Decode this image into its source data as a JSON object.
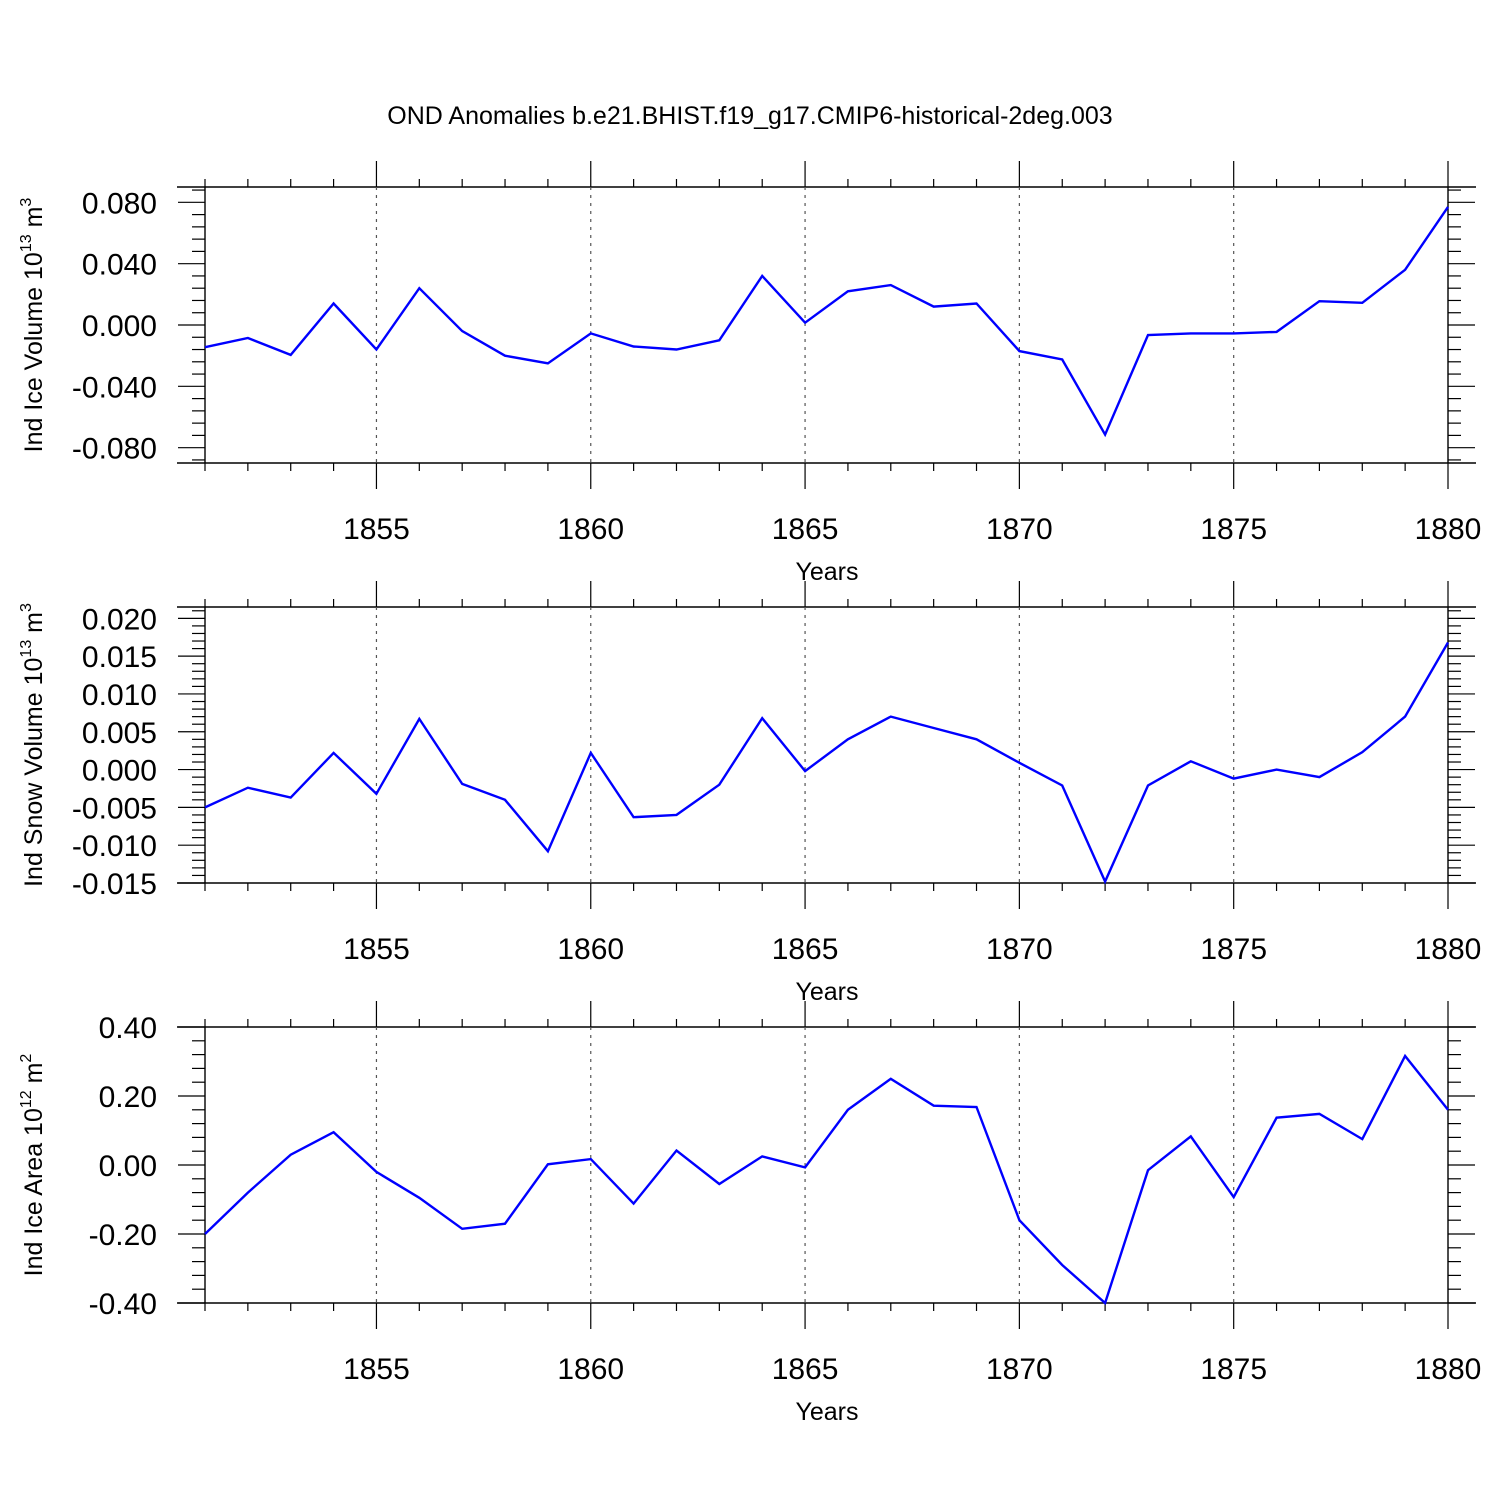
{
  "title": "OND Anomalies b.e21.BHIST.f19_g17.CMIP6-historical-2deg.003",
  "colors": {
    "line": "#0000ff",
    "axis": "#000000",
    "grid": "#555555"
  },
  "chart_data": [
    {
      "type": "line",
      "title": "",
      "xlabel": "Years",
      "ylabel": "Ind Ice Volume 10",
      "ylabel_exp": "13",
      "ylabel_unit": " m",
      "ylabel_unit_exp": "3",
      "xlim": [
        1851,
        1880
      ],
      "ylim": [
        -0.09,
        0.09
      ],
      "yticks": [
        -0.08,
        -0.04,
        0.0,
        0.04,
        0.08
      ],
      "ytick_labels": [
        "-0.080",
        "-0.040",
        "0.000",
        "0.040",
        "0.080"
      ],
      "yminor_step": 0.008,
      "xticks": [
        1855,
        1860,
        1865,
        1870,
        1875,
        1880
      ],
      "xtick_labels": [
        "1855",
        "1860",
        "1865",
        "1870",
        "1875",
        "1880"
      ],
      "grid": "dashed vertical at major x ticks",
      "x": [
        1851,
        1852,
        1853,
        1854,
        1855,
        1856,
        1857,
        1858,
        1859,
        1860,
        1861,
        1862,
        1863,
        1864,
        1865,
        1866,
        1867,
        1868,
        1869,
        1870,
        1871,
        1872,
        1873,
        1874,
        1875,
        1876,
        1877,
        1878,
        1879,
        1880
      ],
      "series": [
        {
          "name": "Ind Ice Volume",
          "values": [
            -0.0145,
            -0.0085,
            -0.0195,
            0.014,
            -0.016,
            0.024,
            -0.004,
            -0.02,
            -0.025,
            -0.0055,
            -0.014,
            -0.016,
            -0.01,
            0.032,
            0.0015,
            0.022,
            0.026,
            0.012,
            0.014,
            -0.017,
            -0.0225,
            -0.0715,
            -0.0065,
            -0.0055,
            -0.0055,
            -0.0045,
            0.0155,
            0.0145,
            0.036,
            0.077
          ]
        }
      ]
    },
    {
      "type": "line",
      "title": "",
      "xlabel": "Years",
      "ylabel": "Ind Snow Volume 10",
      "ylabel_exp": "13",
      "ylabel_unit": " m",
      "ylabel_unit_exp": "3",
      "xlim": [
        1851,
        1880
      ],
      "ylim": [
        -0.015,
        0.0215
      ],
      "yticks": [
        -0.015,
        -0.01,
        -0.005,
        0.0,
        0.005,
        0.01,
        0.015,
        0.02
      ],
      "ytick_labels": [
        "-0.015",
        "-0.010",
        "-0.005",
        "0.000",
        "0.005",
        "0.010",
        "0.015",
        "0.020"
      ],
      "yminor_step": 0.001,
      "xticks": [
        1855,
        1860,
        1865,
        1870,
        1875,
        1880
      ],
      "xtick_labels": [
        "1855",
        "1860",
        "1865",
        "1870",
        "1875",
        "1880"
      ],
      "grid": "dashed vertical at major x ticks",
      "x": [
        1851,
        1852,
        1853,
        1854,
        1855,
        1856,
        1857,
        1858,
        1859,
        1860,
        1861,
        1862,
        1863,
        1864,
        1865,
        1866,
        1867,
        1868,
        1869,
        1870,
        1871,
        1872,
        1873,
        1874,
        1875,
        1876,
        1877,
        1878,
        1879,
        1880
      ],
      "series": [
        {
          "name": "Ind Snow Volume",
          "values": [
            -0.005,
            -0.0024,
            -0.0037,
            0.0022,
            -0.0032,
            0.0067,
            -0.0019,
            -0.004,
            -0.0108,
            0.0022,
            -0.0063,
            -0.006,
            -0.002,
            0.0068,
            -0.0002,
            0.004,
            0.007,
            0.0055,
            0.004,
            0.0009,
            -0.0021,
            -0.0148,
            -0.0021,
            0.0011,
            -0.0012,
            0.0,
            -0.001,
            0.0023,
            0.007,
            0.0168
          ]
        }
      ]
    },
    {
      "type": "line",
      "title": "",
      "xlabel": "Years",
      "ylabel": "Ind Ice Area 10",
      "ylabel_exp": "12",
      "ylabel_unit": " m",
      "ylabel_unit_exp": "2",
      "xlim": [
        1851,
        1880
      ],
      "ylim": [
        -0.4,
        0.4
      ],
      "yticks": [
        -0.4,
        -0.2,
        0.0,
        0.2,
        0.4
      ],
      "ytick_labels": [
        "-0.40",
        "-0.20",
        "0.00",
        "0.20",
        "0.40"
      ],
      "yminor_step": 0.04,
      "xticks": [
        1855,
        1860,
        1865,
        1870,
        1875,
        1880
      ],
      "xtick_labels": [
        "1855",
        "1860",
        "1865",
        "1870",
        "1875",
        "1880"
      ],
      "grid": "dashed vertical at major x ticks",
      "x": [
        1851,
        1852,
        1853,
        1854,
        1855,
        1856,
        1857,
        1858,
        1859,
        1860,
        1861,
        1862,
        1863,
        1864,
        1865,
        1866,
        1867,
        1868,
        1869,
        1870,
        1871,
        1872,
        1873,
        1874,
        1875,
        1876,
        1877,
        1878,
        1879,
        1880
      ],
      "series": [
        {
          "name": "Ind Ice Area",
          "values": [
            -0.2,
            -0.08,
            0.03,
            0.095,
            -0.02,
            -0.095,
            -0.185,
            -0.17,
            0.002,
            0.017,
            -0.112,
            0.042,
            -0.055,
            0.025,
            -0.007,
            0.16,
            0.25,
            0.172,
            0.168,
            -0.16,
            -0.29,
            -0.4,
            -0.015,
            0.083,
            -0.093,
            0.137,
            0.148,
            0.075,
            0.316,
            0.16
          ]
        }
      ]
    }
  ]
}
